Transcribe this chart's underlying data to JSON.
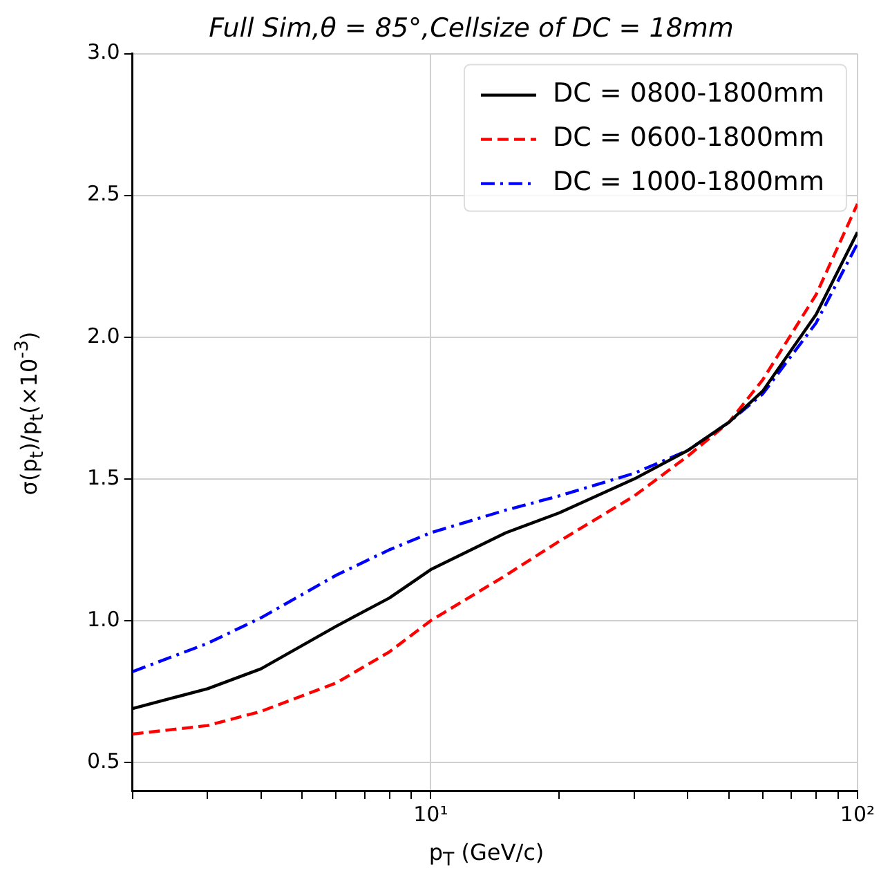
{
  "chart_data": {
    "type": "line",
    "title": "Full Sim,θ = 85°,Cellsize of DC = 18mm",
    "xlabel": "p$_{T}$ (GeV/c)",
    "ylabel": "σ(p$_{t}$)/p$_{t}$(×10$^{-3}$)",
    "x": [
      2,
      3,
      4,
      6,
      8,
      10,
      15,
      20,
      30,
      40,
      50,
      60,
      80,
      100
    ],
    "series": [
      {
        "name": "DC = 0800-1800mm",
        "color": "#000000",
        "line_style": "solid",
        "values": [
          0.69,
          0.76,
          0.83,
          0.98,
          1.08,
          1.18,
          1.31,
          1.38,
          1.5,
          1.6,
          1.7,
          1.81,
          2.08,
          2.37
        ]
      },
      {
        "name": "DC = 0600-1800mm",
        "color": "#ff0000",
        "line_style": "dashed",
        "values": [
          0.6,
          0.63,
          0.68,
          0.78,
          0.89,
          1.0,
          1.16,
          1.28,
          1.44,
          1.58,
          1.7,
          1.85,
          2.15,
          2.47
        ]
      },
      {
        "name": "DC = 1000-1800mm",
        "color": "#0000ff",
        "line_style": "dashdot",
        "values": [
          0.82,
          0.92,
          1.01,
          1.16,
          1.25,
          1.31,
          1.39,
          1.44,
          1.52,
          1.6,
          1.7,
          1.8,
          2.05,
          2.33
        ]
      }
    ],
    "log": "x",
    "xlim": [
      2,
      100
    ],
    "xticks": [
      {
        "value": 2,
        "label": null
      },
      {
        "value": 3,
        "label": null
      },
      {
        "value": 4,
        "label": null
      },
      {
        "value": 5,
        "label": null
      },
      {
        "value": 6,
        "label": null
      },
      {
        "value": 7,
        "label": null
      },
      {
        "value": 8,
        "label": null
      },
      {
        "value": 9,
        "label": null
      },
      {
        "value": 10,
        "label": "10¹"
      },
      {
        "value": 20,
        "label": null
      },
      {
        "value": 30,
        "label": null
      },
      {
        "value": 40,
        "label": null
      },
      {
        "value": 50,
        "label": null
      },
      {
        "value": 60,
        "label": null
      },
      {
        "value": 70,
        "label": null
      },
      {
        "value": 80,
        "label": null
      },
      {
        "value": 90,
        "label": null
      },
      {
        "value": 100,
        "label": "10²"
      }
    ],
    "ylim": [
      0.4,
      3.0
    ],
    "yticks": [
      0.5,
      {
        "value": 1,
        "label": "1.0"
      },
      1.5,
      {
        "value": 2,
        "label": "2.0"
      },
      2.5,
      {
        "value": 3,
        "label": "3.0"
      }
    ],
    "grid": true,
    "legend": "top right"
  }
}
